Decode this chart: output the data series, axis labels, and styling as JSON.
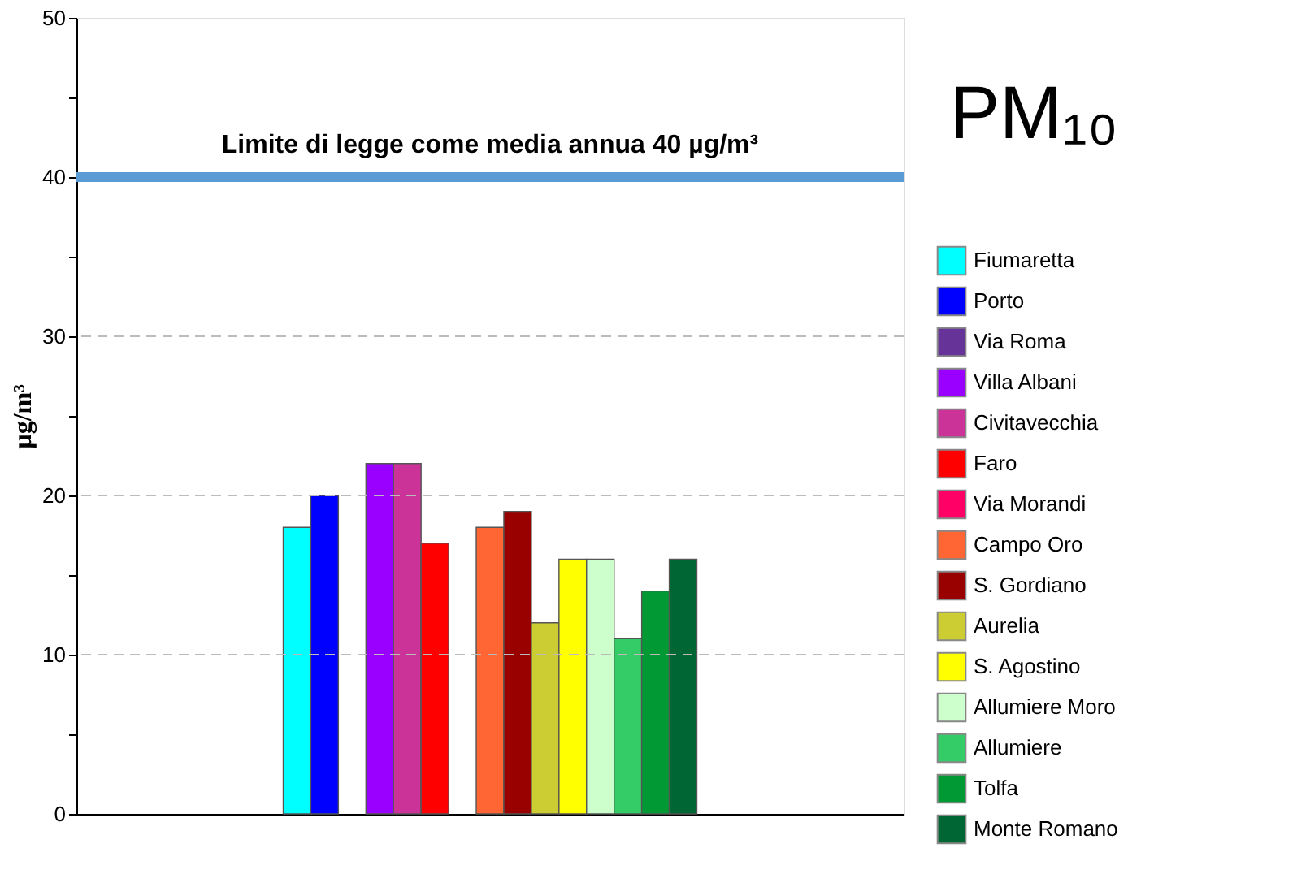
{
  "chart_data": {
    "type": "bar",
    "title": "PM₁₀",
    "ylabel": "µg/m³",
    "categories": [
      null
    ],
    "series": [
      {
        "name": "Fiumaretta",
        "color": "#00ffff",
        "values": [
          18
        ]
      },
      {
        "name": "Porto",
        "color": "#0000ff",
        "values": [
          20
        ]
      },
      {
        "name": "Via Roma",
        "color": "#663399",
        "values": [
          null
        ]
      },
      {
        "name": "Villa Albani",
        "color": "#9900ff",
        "values": [
          22
        ]
      },
      {
        "name": "Civitavecchia",
        "color": "#cc3399",
        "values": [
          22
        ]
      },
      {
        "name": "Faro",
        "color": "#ff0000",
        "values": [
          17
        ]
      },
      {
        "name": "Via Morandi",
        "color": "#ff0066",
        "values": [
          null
        ]
      },
      {
        "name": "Campo Oro",
        "color": "#ff6633",
        "values": [
          18
        ]
      },
      {
        "name": "S. Gordiano",
        "color": "#990000",
        "values": [
          19
        ]
      },
      {
        "name": "Aurelia",
        "color": "#cccc33",
        "values": [
          12
        ]
      },
      {
        "name": "S. Agostino",
        "color": "#ffff00",
        "values": [
          16
        ]
      },
      {
        "name": "Allumiere Moro",
        "color": "#ccffcc",
        "values": [
          16
        ]
      },
      {
        "name": "Allumiere",
        "color": "#33cc66",
        "values": [
          11
        ]
      },
      {
        "name": "Tolfa",
        "color": "#009933",
        "values": [
          14
        ]
      },
      {
        "name": "Monte Romano",
        "color": "#006633",
        "values": [
          16
        ]
      }
    ],
    "ylim": [
      0,
      50
    ],
    "yticks": [
      0,
      {
        "value": 5,
        "label": null
      },
      10,
      {
        "value": 15,
        "label": null
      },
      20,
      {
        "value": 25,
        "label": null
      },
      30,
      {
        "value": 35,
        "label": null
      },
      40,
      {
        "value": 45,
        "label": null
      },
      50
    ],
    "ref_lines": [
      {
        "axis": "y",
        "value": 40,
        "label": "Limite di legge come media annua 40 µg/m³",
        "color": "#5b9bd5"
      }
    ],
    "grid": "y",
    "legend": "right",
    "tick_labels": "y"
  }
}
